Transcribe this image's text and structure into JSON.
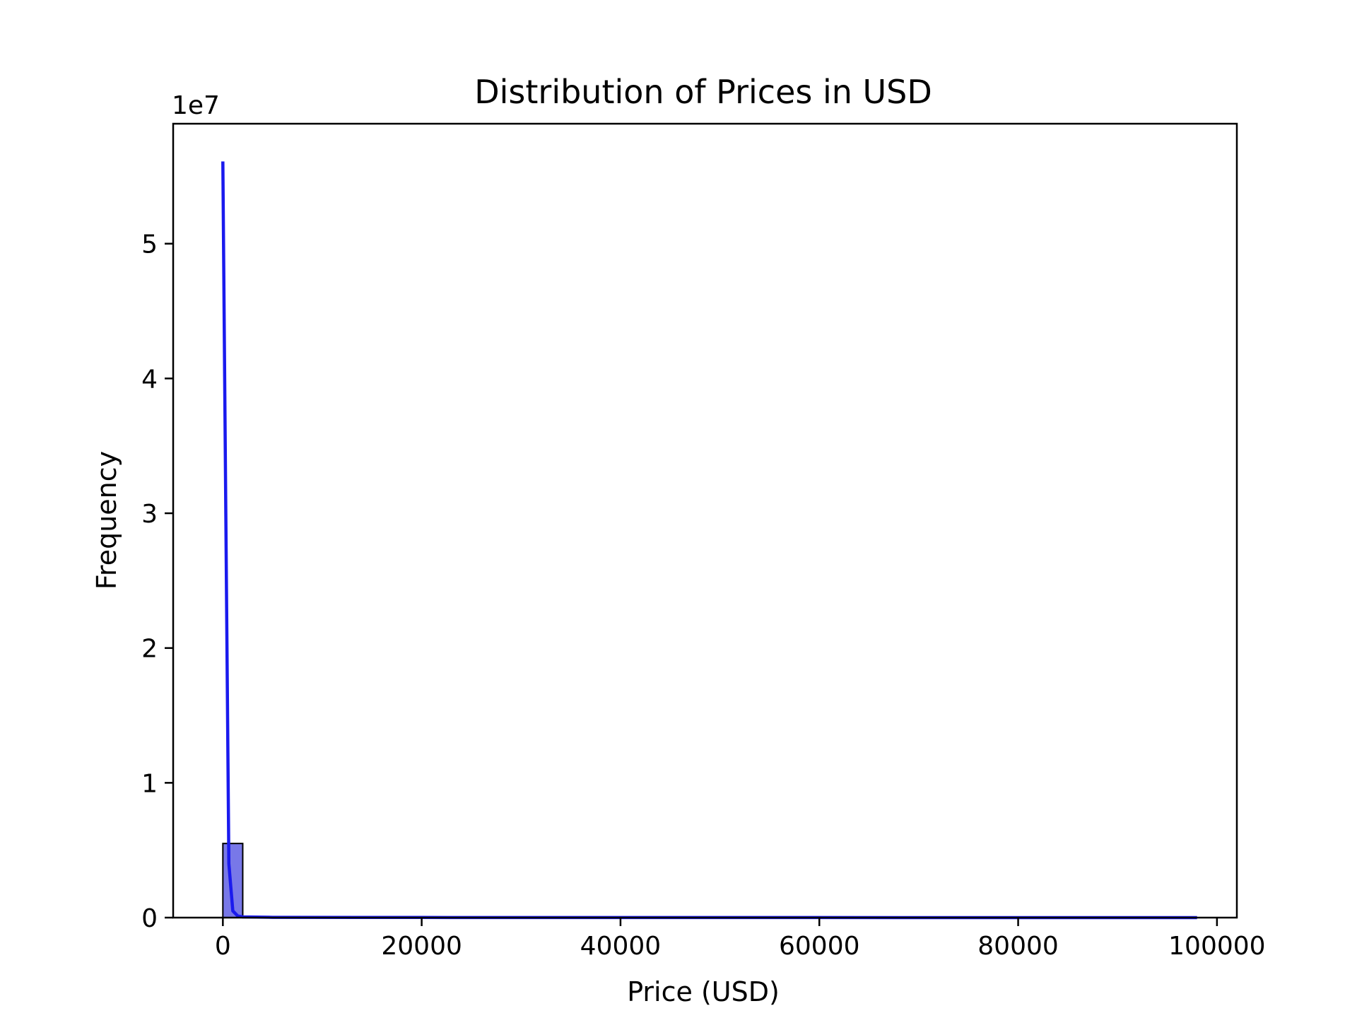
{
  "chart_data": {
    "type": "bar",
    "title": "Distribution of Prices in USD",
    "xlabel": "Price (USD)",
    "ylabel": "Frequency",
    "y_offset_label": "1e7",
    "y_scale": 10000000,
    "xlim": [
      -5000,
      102000
    ],
    "ylim": [
      0,
      58900000
    ],
    "x_ticks": [
      0,
      20000,
      40000,
      60000,
      80000,
      100000
    ],
    "x_tick_labels": [
      "0",
      "20000",
      "40000",
      "60000",
      "80000",
      "100000"
    ],
    "y_ticks": [
      0,
      10000000,
      20000000,
      30000000,
      40000000,
      50000000
    ],
    "y_tick_labels": [
      "0",
      "1",
      "2",
      "3",
      "4",
      "5"
    ],
    "grid": false,
    "legend": "none",
    "bar_color": "#7878e8",
    "bar_edge_color": "#000000",
    "line_color": "#1a1aee",
    "bins": [
      {
        "x0": 0,
        "x1": 2000,
        "count": 5500000
      }
    ],
    "density_curve": {
      "x": [
        0,
        300,
        600,
        1000,
        1500,
        2000,
        5000,
        20000,
        40000,
        60000,
        80000,
        98000
      ],
      "y": [
        56100000,
        30000000,
        4000000,
        500000,
        120000,
        50000,
        20000,
        10000,
        5000,
        3000,
        2000,
        1000
      ]
    }
  }
}
